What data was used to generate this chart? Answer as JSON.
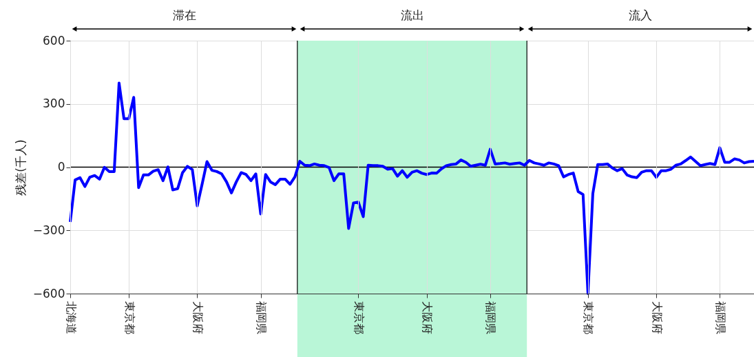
{
  "chart_data": {
    "type": "line",
    "ylabel": "残差(千人)",
    "categories": [
      "北海道",
      null,
      null,
      null,
      null,
      null,
      null,
      null,
      null,
      null,
      null,
      null,
      "東京都",
      null,
      null,
      null,
      null,
      null,
      null,
      null,
      null,
      null,
      null,
      null,
      null,
      null,
      "大阪府",
      null,
      null,
      null,
      null,
      null,
      null,
      null,
      null,
      null,
      null,
      null,
      null,
      "福岡県",
      null,
      null,
      null,
      null,
      null,
      null,
      null,
      null,
      null,
      null,
      null,
      null,
      null,
      null,
      null,
      null,
      null,
      null,
      null,
      "東京都",
      null,
      null,
      null,
      null,
      null,
      null,
      null,
      null,
      null,
      null,
      null,
      null,
      null,
      "大阪府",
      null,
      null,
      null,
      null,
      null,
      null,
      null,
      null,
      null,
      null,
      null,
      null,
      "福岡県",
      null,
      null,
      null,
      null,
      null,
      null,
      null,
      null,
      null,
      null,
      null,
      null,
      null,
      null,
      null,
      null,
      null,
      null,
      null,
      "東京都",
      null,
      null,
      null,
      null,
      null,
      null,
      null,
      null,
      null,
      null,
      null,
      null,
      null,
      "大阪府",
      null,
      null,
      null,
      null,
      null,
      null,
      null,
      null,
      null,
      null,
      null,
      null,
      "福岡県",
      null,
      null,
      null,
      null,
      null,
      null,
      null
    ],
    "series": [
      {
        "color": "#0000ff",
        "values": [
          -260,
          -61,
          -50,
          -92,
          -48,
          -40,
          -57,
          -1,
          -21,
          -21,
          399,
          230,
          230,
          331,
          -97,
          -37,
          -37,
          -19,
          -12,
          -64,
          1,
          -108,
          -102,
          -26,
          4,
          -12,
          -184,
          -81,
          26,
          -15,
          -21,
          -32,
          -70,
          -122,
          -70,
          -26,
          -35,
          -64,
          -32,
          -222,
          -35,
          -70,
          -83,
          -57,
          -57,
          -81,
          -46,
          28,
          9,
          7,
          15,
          9,
          7,
          -2,
          -64,
          -32,
          -32,
          -291,
          -170,
          -166,
          -235,
          9,
          7,
          7,
          4,
          -10,
          -7,
          -43,
          -17,
          -48,
          -24,
          -17,
          -29,
          -35,
          -28,
          -29,
          -8,
          7,
          12,
          15,
          34,
          23,
          4,
          9,
          14,
          9,
          85,
          15,
          17,
          20,
          14,
          17,
          20,
          9,
          32,
          20,
          15,
          9,
          20,
          15,
          7,
          -46,
          -35,
          -28,
          -116,
          -130,
          -600,
          -126,
          12,
          12,
          15,
          -4,
          -17,
          -7,
          -37,
          -46,
          -50,
          -24,
          -17,
          -17,
          -48,
          -17,
          -17,
          -10,
          9,
          15,
          31,
          48,
          28,
          7,
          12,
          17,
          12,
          92,
          23,
          23,
          39,
          34,
          20,
          26,
          28
        ]
      }
    ],
    "ylim": [
      -600,
      600
    ],
    "yticks": [
      -600,
      -300,
      0,
      300,
      600
    ],
    "annotations": [
      "滞在",
      "流出",
      "流入"
    ],
    "ref_lines": [
      {
        "axis": "y",
        "value": 0,
        "color": "#000000"
      }
    ],
    "grid": true,
    "marker": "none",
    "line_style": "solid"
  }
}
